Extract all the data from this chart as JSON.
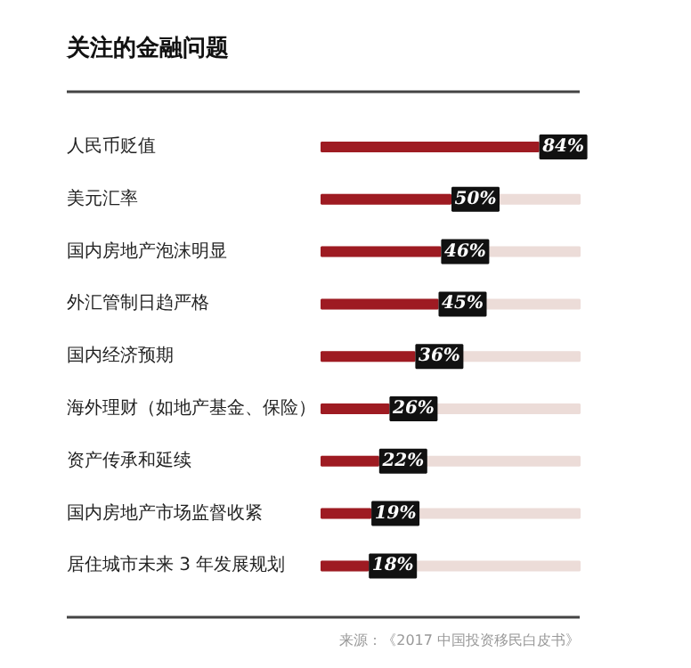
{
  "chart_data": {
    "type": "bar",
    "orientation": "horizontal",
    "title": "关注的金融问题",
    "categories": [
      "人民币贬值",
      "美元汇率",
      "国内房地产泡沫明显",
      "外汇管制日趋严格",
      "国内经济预期",
      "海外理财（如地产基金、保险）",
      "资产传承和延续",
      "国内房地产市场监督收紧",
      "居住城市未来 3 年发展规划"
    ],
    "values": [
      84,
      50,
      46,
      45,
      36,
      26,
      22,
      19,
      18
    ],
    "value_labels": [
      "84%",
      "50%",
      "46%",
      "45%",
      "36%",
      "26%",
      "22%",
      "19%",
      "18%"
    ],
    "color": "#9e1b22",
    "data_labels": false,
    "annotations": [
      "来源：《2017 中国投资移民白皮书》"
    ]
  }
}
